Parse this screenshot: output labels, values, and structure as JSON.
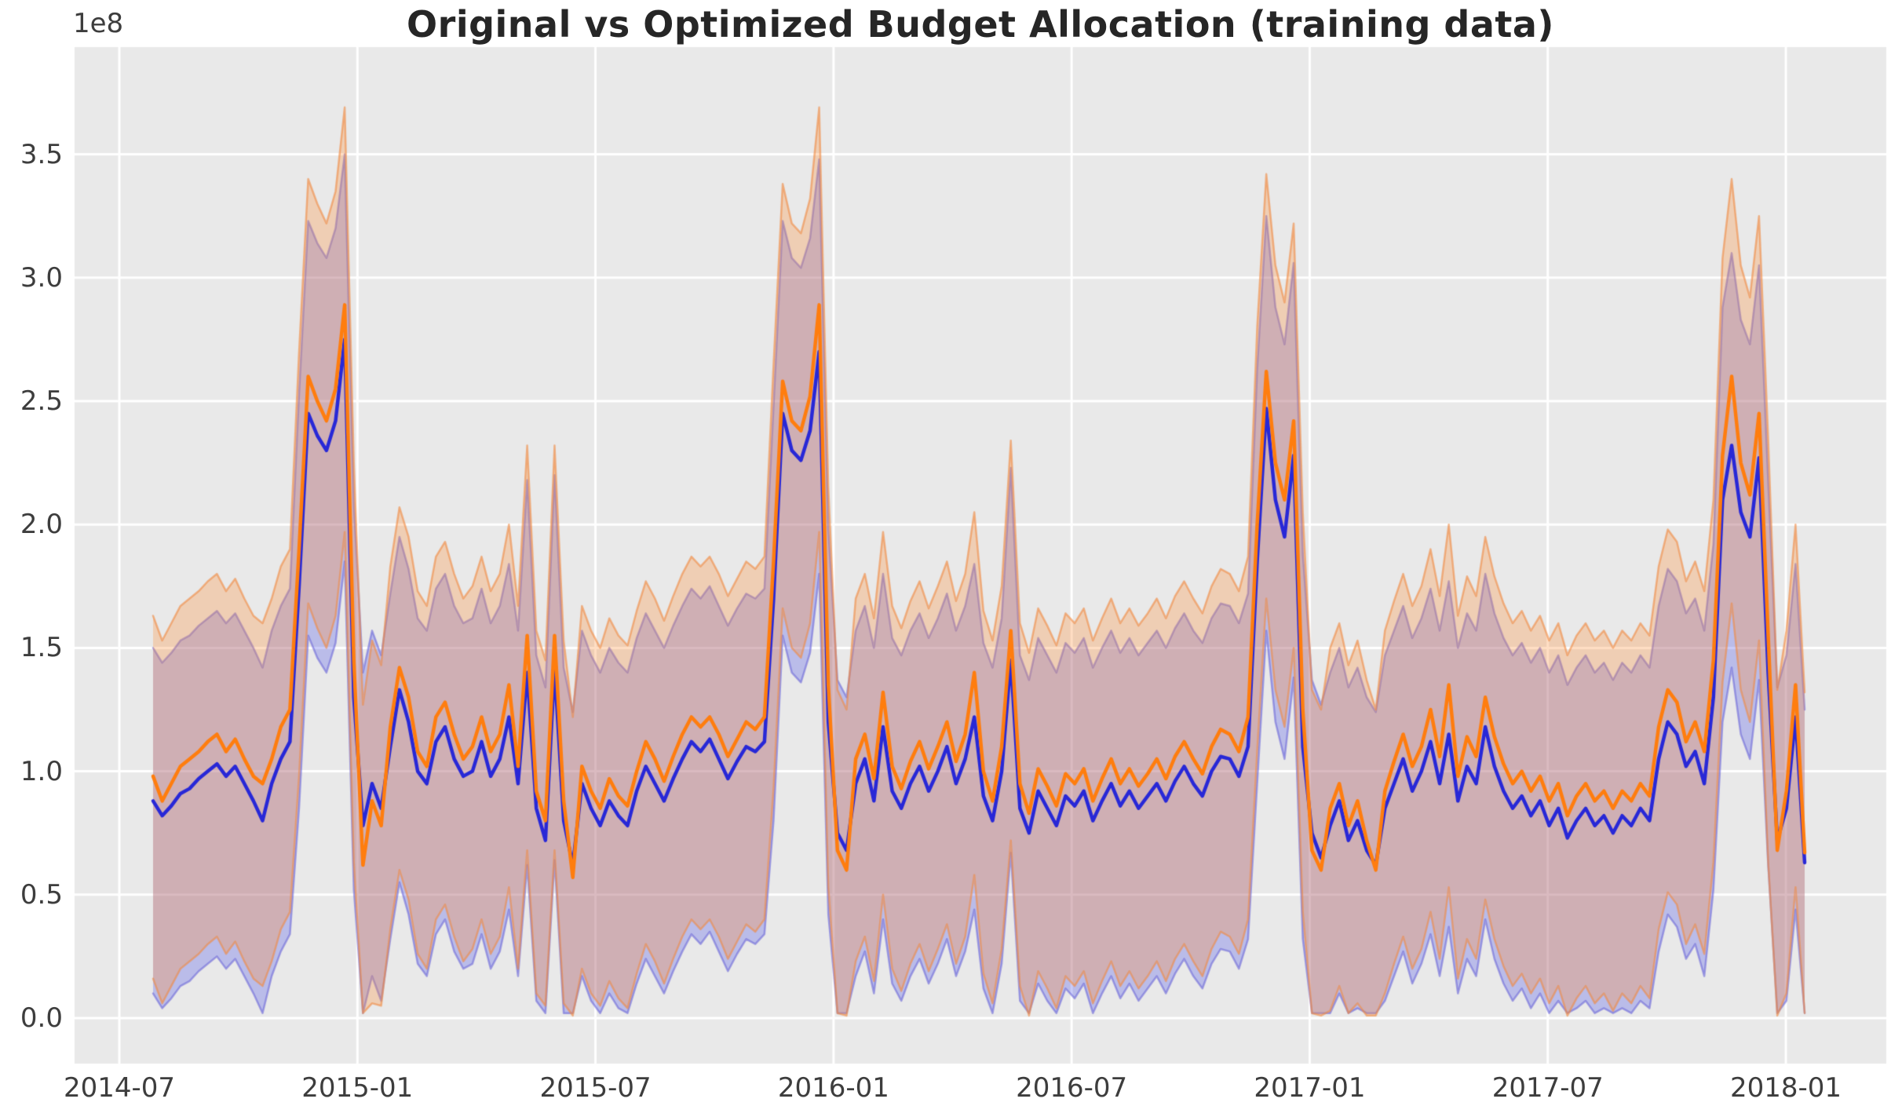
{
  "figure": {
    "background": "#ffffff",
    "plot_background": "#e9e9e9",
    "grid_color": "#ffffff"
  },
  "chart_data": {
    "type": "line",
    "title": "Original vs Optimized Budget Allocation (training data)",
    "subtitle": "",
    "legend": false,
    "grid": true,
    "x_axis": {
      "tick_labels": [
        "2014-07",
        "2015-01",
        "2015-07",
        "2016-01",
        "2016-07",
        "2017-01",
        "2017-07",
        "2018-01"
      ],
      "start_date": "2014-07-27",
      "interval_days": 7,
      "n_points": 182
    },
    "y_axis": {
      "tick_labels": [
        "0.0",
        "0.5",
        "1.0",
        "1.5",
        "2.0",
        "2.5",
        "3.0",
        "3.5"
      ],
      "tick_values": [
        0.0,
        0.5,
        1.0,
        1.5,
        2.0,
        2.5,
        3.0,
        3.5
      ],
      "offset_text": "1e8",
      "unit_multiplier": 100000000,
      "ylim": [
        -0.185,
        3.935
      ]
    },
    "series": [
      {
        "name": "original",
        "color": "#2828d7",
        "line_width": 4.5,
        "band_fill": "rgba(80,85,235,0.30)",
        "band_edge": "rgba(100,95,215,0.55)",
        "values": [
          0.88,
          0.82,
          0.86,
          0.91,
          0.93,
          0.97,
          1.0,
          1.03,
          0.98,
          1.02,
          0.95,
          0.88,
          0.8,
          0.95,
          1.05,
          1.12,
          1.75,
          2.45,
          2.36,
          2.3,
          2.42,
          2.75,
          1.3,
          0.78,
          0.95,
          0.85,
          1.1,
          1.33,
          1.2,
          1.0,
          0.95,
          1.12,
          1.18,
          1.05,
          0.98,
          1.0,
          1.12,
          0.98,
          1.05,
          1.22,
          0.95,
          1.4,
          0.85,
          0.72,
          1.42,
          0.8,
          0.62,
          0.95,
          0.85,
          0.78,
          0.88,
          0.82,
          0.78,
          0.92,
          1.02,
          0.95,
          0.88,
          0.97,
          1.05,
          1.12,
          1.08,
          1.13,
          1.05,
          0.97,
          1.04,
          1.1,
          1.08,
          1.12,
          1.7,
          2.45,
          2.3,
          2.26,
          2.38,
          2.7,
          1.2,
          0.75,
          0.68,
          0.95,
          1.05,
          0.88,
          1.18,
          0.92,
          0.85,
          0.95,
          1.02,
          0.92,
          1.0,
          1.1,
          0.95,
          1.05,
          1.22,
          0.9,
          0.8,
          1.0,
          1.45,
          0.85,
          0.75,
          0.92,
          0.85,
          0.78,
          0.9,
          0.86,
          0.92,
          0.8,
          0.88,
          0.95,
          0.86,
          0.92,
          0.85,
          0.9,
          0.95,
          0.88,
          0.96,
          1.02,
          0.95,
          0.9,
          1.0,
          1.06,
          1.05,
          0.98,
          1.1,
          1.85,
          2.47,
          2.1,
          1.95,
          2.28,
          1.1,
          0.75,
          0.65,
          0.78,
          0.88,
          0.72,
          0.8,
          0.68,
          0.62,
          0.85,
          0.95,
          1.05,
          0.92,
          1.0,
          1.12,
          0.95,
          1.15,
          0.88,
          1.02,
          0.95,
          1.18,
          1.02,
          0.92,
          0.85,
          0.9,
          0.82,
          0.88,
          0.78,
          0.85,
          0.73,
          0.8,
          0.85,
          0.78,
          0.82,
          0.75,
          0.82,
          0.78,
          0.85,
          0.8,
          1.05,
          1.2,
          1.15,
          1.02,
          1.08,
          0.95,
          1.3,
          2.1,
          2.32,
          2.05,
          1.95,
          2.27,
          1.4,
          0.72,
          0.85,
          1.22,
          0.63
        ],
        "band_upper": [
          1.5,
          1.44,
          1.48,
          1.53,
          1.55,
          1.59,
          1.62,
          1.65,
          1.6,
          1.64,
          1.57,
          1.5,
          1.42,
          1.57,
          1.67,
          1.74,
          2.53,
          3.23,
          3.14,
          3.08,
          3.2,
          3.5,
          2.08,
          1.4,
          1.57,
          1.47,
          1.72,
          1.95,
          1.82,
          1.62,
          1.57,
          1.74,
          1.8,
          1.67,
          1.6,
          1.62,
          1.74,
          1.6,
          1.67,
          1.84,
          1.57,
          2.18,
          1.47,
          1.34,
          2.2,
          1.42,
          1.24,
          1.57,
          1.47,
          1.4,
          1.5,
          1.44,
          1.4,
          1.54,
          1.64,
          1.57,
          1.5,
          1.59,
          1.67,
          1.74,
          1.7,
          1.75,
          1.67,
          1.59,
          1.66,
          1.72,
          1.7,
          1.74,
          2.48,
          3.23,
          3.08,
          3.04,
          3.16,
          3.48,
          1.98,
          1.37,
          1.3,
          1.57,
          1.67,
          1.5,
          1.8,
          1.54,
          1.47,
          1.57,
          1.64,
          1.54,
          1.62,
          1.72,
          1.57,
          1.67,
          1.84,
          1.52,
          1.42,
          1.62,
          2.23,
          1.47,
          1.37,
          1.54,
          1.47,
          1.4,
          1.52,
          1.48,
          1.54,
          1.42,
          1.5,
          1.57,
          1.48,
          1.54,
          1.47,
          1.52,
          1.57,
          1.5,
          1.58,
          1.64,
          1.57,
          1.52,
          1.62,
          1.68,
          1.67,
          1.6,
          1.72,
          2.63,
          3.25,
          2.88,
          2.73,
          3.06,
          1.88,
          1.37,
          1.27,
          1.4,
          1.5,
          1.34,
          1.42,
          1.3,
          1.24,
          1.47,
          1.57,
          1.67,
          1.54,
          1.62,
          1.74,
          1.57,
          1.77,
          1.5,
          1.64,
          1.57,
          1.8,
          1.64,
          1.54,
          1.47,
          1.52,
          1.44,
          1.5,
          1.4,
          1.47,
          1.35,
          1.42,
          1.47,
          1.4,
          1.44,
          1.37,
          1.44,
          1.4,
          1.47,
          1.42,
          1.67,
          1.82,
          1.77,
          1.64,
          1.7,
          1.57,
          1.92,
          2.88,
          3.1,
          2.83,
          2.73,
          3.05,
          2.18,
          1.34,
          1.47,
          1.84,
          1.25
        ],
        "band_lower": [
          0.1,
          0.04,
          0.08,
          0.13,
          0.15,
          0.19,
          0.22,
          0.25,
          0.2,
          0.24,
          0.17,
          0.1,
          0.02,
          0.17,
          0.27,
          0.34,
          0.85,
          1.55,
          1.46,
          1.4,
          1.52,
          1.85,
          0.52,
          0.02,
          0.17,
          0.07,
          0.32,
          0.55,
          0.42,
          0.22,
          0.17,
          0.34,
          0.4,
          0.27,
          0.2,
          0.22,
          0.34,
          0.2,
          0.27,
          0.44,
          0.17,
          0.62,
          0.07,
          0.02,
          0.64,
          0.02,
          0.02,
          0.17,
          0.07,
          0.02,
          0.1,
          0.04,
          0.02,
          0.14,
          0.24,
          0.17,
          0.1,
          0.19,
          0.27,
          0.34,
          0.3,
          0.35,
          0.27,
          0.19,
          0.26,
          0.32,
          0.3,
          0.34,
          0.8,
          1.55,
          1.4,
          1.36,
          1.48,
          1.8,
          0.42,
          0.02,
          0.02,
          0.17,
          0.27,
          0.1,
          0.4,
          0.14,
          0.07,
          0.17,
          0.24,
          0.14,
          0.22,
          0.32,
          0.17,
          0.27,
          0.44,
          0.12,
          0.02,
          0.22,
          0.67,
          0.07,
          0.02,
          0.14,
          0.07,
          0.02,
          0.12,
          0.08,
          0.14,
          0.02,
          0.1,
          0.17,
          0.08,
          0.14,
          0.07,
          0.12,
          0.17,
          0.1,
          0.18,
          0.24,
          0.17,
          0.12,
          0.22,
          0.28,
          0.27,
          0.2,
          0.32,
          0.95,
          1.57,
          1.2,
          1.05,
          1.38,
          0.32,
          0.02,
          0.02,
          0.02,
          0.1,
          0.02,
          0.04,
          0.02,
          0.02,
          0.07,
          0.17,
          0.27,
          0.14,
          0.22,
          0.34,
          0.17,
          0.37,
          0.1,
          0.24,
          0.17,
          0.4,
          0.24,
          0.14,
          0.07,
          0.12,
          0.04,
          0.1,
          0.02,
          0.07,
          0.02,
          0.04,
          0.07,
          0.02,
          0.04,
          0.02,
          0.04,
          0.02,
          0.07,
          0.04,
          0.27,
          0.42,
          0.37,
          0.24,
          0.3,
          0.17,
          0.52,
          1.2,
          1.42,
          1.15,
          1.05,
          1.37,
          0.62,
          0.02,
          0.07,
          0.44,
          0.02
        ]
      },
      {
        "name": "optimized",
        "color": "#ff7d0e",
        "line_width": 4.5,
        "band_fill": "rgba(255,145,60,0.30)",
        "band_edge": "rgba(240,138,66,0.60)",
        "values": [
          0.98,
          0.88,
          0.95,
          1.02,
          1.05,
          1.08,
          1.12,
          1.15,
          1.08,
          1.13,
          1.05,
          0.98,
          0.95,
          1.05,
          1.18,
          1.25,
          1.9,
          2.6,
          2.5,
          2.42,
          2.55,
          2.89,
          1.45,
          0.62,
          0.88,
          0.78,
          1.18,
          1.42,
          1.3,
          1.08,
          1.02,
          1.22,
          1.28,
          1.15,
          1.05,
          1.1,
          1.22,
          1.08,
          1.15,
          1.35,
          1.02,
          1.55,
          0.92,
          0.8,
          1.55,
          0.88,
          0.57,
          1.02,
          0.92,
          0.85,
          0.97,
          0.9,
          0.86,
          1.0,
          1.12,
          1.05,
          0.96,
          1.06,
          1.15,
          1.22,
          1.18,
          1.22,
          1.15,
          1.06,
          1.13,
          1.2,
          1.17,
          1.22,
          1.85,
          2.58,
          2.42,
          2.38,
          2.52,
          2.89,
          1.35,
          0.68,
          0.6,
          1.05,
          1.15,
          0.97,
          1.32,
          1.02,
          0.93,
          1.04,
          1.12,
          1.01,
          1.1,
          1.2,
          1.04,
          1.15,
          1.4,
          1.0,
          0.88,
          1.1,
          1.57,
          0.95,
          0.83,
          1.01,
          0.94,
          0.86,
          0.99,
          0.95,
          1.01,
          0.88,
          0.97,
          1.05,
          0.95,
          1.01,
          0.94,
          0.99,
          1.05,
          0.97,
          1.06,
          1.12,
          1.05,
          0.99,
          1.1,
          1.17,
          1.15,
          1.08,
          1.22,
          2.0,
          2.62,
          2.25,
          2.1,
          2.42,
          1.25,
          0.68,
          0.6,
          0.85,
          0.95,
          0.78,
          0.88,
          0.72,
          0.6,
          0.92,
          1.04,
          1.15,
          1.02,
          1.1,
          1.25,
          1.06,
          1.35,
          0.98,
          1.14,
          1.06,
          1.3,
          1.14,
          1.03,
          0.95,
          1.0,
          0.92,
          0.98,
          0.88,
          0.95,
          0.82,
          0.9,
          0.95,
          0.88,
          0.92,
          0.85,
          0.92,
          0.88,
          0.95,
          0.9,
          1.18,
          1.33,
          1.28,
          1.12,
          1.2,
          1.08,
          1.45,
          2.28,
          2.6,
          2.25,
          2.12,
          2.45,
          1.55,
          0.68,
          0.92,
          1.35,
          0.67
        ],
        "band_upper": [
          1.63,
          1.53,
          1.6,
          1.67,
          1.7,
          1.73,
          1.77,
          1.8,
          1.73,
          1.78,
          1.7,
          1.63,
          1.6,
          1.7,
          1.83,
          1.9,
          2.7,
          3.4,
          3.3,
          3.22,
          3.35,
          3.69,
          2.25,
          1.27,
          1.53,
          1.43,
          1.83,
          2.07,
          1.95,
          1.73,
          1.67,
          1.87,
          1.93,
          1.8,
          1.7,
          1.75,
          1.87,
          1.73,
          1.8,
          2.0,
          1.67,
          2.32,
          1.57,
          1.45,
          2.32,
          1.53,
          1.22,
          1.67,
          1.57,
          1.5,
          1.62,
          1.55,
          1.51,
          1.65,
          1.77,
          1.7,
          1.61,
          1.71,
          1.8,
          1.87,
          1.83,
          1.87,
          1.8,
          1.71,
          1.78,
          1.85,
          1.82,
          1.87,
          2.65,
          3.38,
          3.22,
          3.18,
          3.32,
          3.69,
          2.15,
          1.33,
          1.25,
          1.7,
          1.8,
          1.62,
          1.97,
          1.67,
          1.58,
          1.69,
          1.77,
          1.66,
          1.75,
          1.85,
          1.69,
          1.8,
          2.05,
          1.65,
          1.53,
          1.75,
          2.34,
          1.6,
          1.48,
          1.66,
          1.59,
          1.51,
          1.64,
          1.6,
          1.66,
          1.53,
          1.62,
          1.7,
          1.6,
          1.66,
          1.59,
          1.64,
          1.7,
          1.62,
          1.71,
          1.77,
          1.7,
          1.64,
          1.75,
          1.82,
          1.8,
          1.73,
          1.87,
          2.8,
          3.42,
          3.05,
          2.9,
          3.22,
          2.05,
          1.33,
          1.25,
          1.5,
          1.6,
          1.43,
          1.53,
          1.37,
          1.25,
          1.57,
          1.69,
          1.8,
          1.67,
          1.75,
          1.9,
          1.71,
          2.0,
          1.63,
          1.79,
          1.71,
          1.95,
          1.79,
          1.68,
          1.6,
          1.65,
          1.57,
          1.63,
          1.53,
          1.6,
          1.47,
          1.55,
          1.6,
          1.53,
          1.57,
          1.5,
          1.57,
          1.53,
          1.6,
          1.55,
          1.83,
          1.98,
          1.93,
          1.77,
          1.85,
          1.73,
          2.1,
          3.08,
          3.4,
          3.05,
          2.92,
          3.25,
          2.35,
          1.33,
          1.57,
          2.0,
          1.32
        ],
        "band_lower": [
          0.16,
          0.06,
          0.13,
          0.2,
          0.23,
          0.26,
          0.3,
          0.33,
          0.26,
          0.31,
          0.23,
          0.16,
          0.13,
          0.23,
          0.36,
          0.43,
          0.98,
          1.68,
          1.58,
          1.5,
          1.63,
          1.97,
          0.63,
          0.02,
          0.06,
          0.05,
          0.36,
          0.6,
          0.48,
          0.26,
          0.2,
          0.4,
          0.46,
          0.33,
          0.23,
          0.28,
          0.4,
          0.26,
          0.33,
          0.53,
          0.2,
          0.68,
          0.1,
          0.05,
          0.68,
          0.06,
          0.01,
          0.2,
          0.1,
          0.05,
          0.15,
          0.08,
          0.04,
          0.18,
          0.3,
          0.23,
          0.14,
          0.24,
          0.33,
          0.4,
          0.36,
          0.4,
          0.33,
          0.24,
          0.31,
          0.38,
          0.35,
          0.4,
          0.93,
          1.66,
          1.5,
          1.46,
          1.6,
          1.97,
          0.53,
          0.02,
          0.01,
          0.23,
          0.33,
          0.15,
          0.5,
          0.2,
          0.11,
          0.22,
          0.3,
          0.19,
          0.28,
          0.38,
          0.22,
          0.33,
          0.58,
          0.18,
          0.06,
          0.28,
          0.72,
          0.13,
          0.01,
          0.19,
          0.12,
          0.04,
          0.17,
          0.13,
          0.19,
          0.06,
          0.15,
          0.23,
          0.13,
          0.19,
          0.12,
          0.17,
          0.23,
          0.15,
          0.24,
          0.3,
          0.23,
          0.17,
          0.28,
          0.35,
          0.33,
          0.26,
          0.4,
          1.08,
          1.7,
          1.33,
          1.18,
          1.5,
          0.43,
          0.02,
          0.01,
          0.03,
          0.13,
          0.02,
          0.06,
          0.01,
          0.01,
          0.1,
          0.22,
          0.33,
          0.2,
          0.28,
          0.43,
          0.24,
          0.53,
          0.16,
          0.32,
          0.24,
          0.48,
          0.32,
          0.21,
          0.13,
          0.18,
          0.1,
          0.16,
          0.06,
          0.13,
          0.01,
          0.08,
          0.13,
          0.06,
          0.1,
          0.03,
          0.1,
          0.06,
          0.13,
          0.08,
          0.36,
          0.51,
          0.46,
          0.3,
          0.38,
          0.26,
          0.63,
          1.36,
          1.68,
          1.33,
          1.2,
          1.53,
          0.63,
          0.01,
          0.1,
          0.53,
          0.02
        ]
      }
    ]
  }
}
